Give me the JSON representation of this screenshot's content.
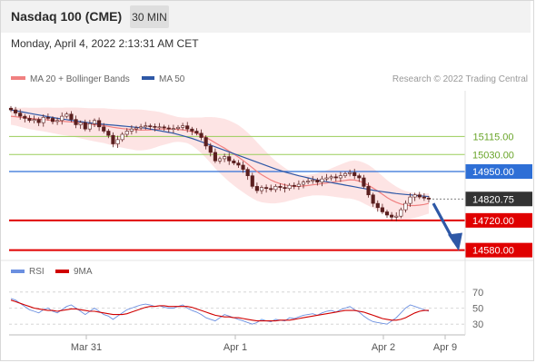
{
  "header": {
    "instrument": "Nasdaq 100 (CME)",
    "interval": "30 MIN",
    "datetime": "Monday, April 4, 2022 2:13:31 AM CET"
  },
  "legend": {
    "ma20_bb": "MA 20 + Bollinger Bands",
    "ma50": "MA 50",
    "copyright": "Research © 2022 Trading Central",
    "rsi": "RSI",
    "rsi_ma": "9MA"
  },
  "colors": {
    "ma20": "#f08080",
    "bollinger_fill": "#fde3e3",
    "ma50": "#2e58a6",
    "resistance": "#9acd5a",
    "pivot": "#2e6fd6",
    "support": "#e00000",
    "current": "#333333",
    "candle_up": "#ffffff",
    "candle_down": "#5a1f1f",
    "arrow": "#2e58a6",
    "rsi": "#6b8fe0",
    "rsi_ma": "#d00000"
  },
  "chart_data": [
    {
      "type": "candlestick",
      "title": "Nasdaq 100 (CME)",
      "ylim": [
        14540,
        15330
      ],
      "x_ticks": [
        "Mar 31",
        "Apr 1",
        "Apr 2",
        "Apr 9"
      ],
      "levels": [
        {
          "label": "15115.00",
          "value": 15115.0,
          "kind": "resistance"
        },
        {
          "label": "15030.00",
          "value": 15030.0,
          "kind": "resistance"
        },
        {
          "label": "14950.00",
          "value": 14950.0,
          "kind": "pivot"
        },
        {
          "label": "14820.75",
          "value": 14820.75,
          "kind": "current"
        },
        {
          "label": "14720.00",
          "value": 14720.0,
          "kind": "support"
        },
        {
          "label": "14580.00",
          "value": 14580.0,
          "kind": "support"
        }
      ],
      "close": [
        15240,
        15225,
        15210,
        15200,
        15190,
        15195,
        15180,
        15205,
        15200,
        15185,
        15190,
        15210,
        15220,
        15195,
        15170,
        15180,
        15150,
        15175,
        15190,
        15160,
        15140,
        15120,
        15080,
        15100,
        15125,
        15140,
        15150,
        15155,
        15160,
        15165,
        15162,
        15158,
        15160,
        15155,
        15150,
        15152,
        15158,
        15165,
        15150,
        15140,
        15130,
        15110,
        15070,
        15040,
        15000,
        15010,
        15020,
        15000,
        14990,
        14980,
        14960,
        14930,
        14880,
        14860,
        14875,
        14870,
        14865,
        14880,
        14875,
        14870,
        14885,
        14880,
        14890,
        14900,
        14905,
        14910,
        14900,
        14915,
        14920,
        14925,
        14920,
        14930,
        14940,
        14945,
        14930,
        14920,
        14880,
        14840,
        14800,
        14780,
        14760,
        14745,
        14735,
        14740,
        14770,
        14800,
        14830,
        14840,
        14830,
        14825,
        14820
      ],
      "ma20": [
        15210,
        15208,
        15205,
        15203,
        15200,
        15198,
        15196,
        15195,
        15193,
        15190,
        15188,
        15186,
        15185,
        15183,
        15181,
        15178,
        15175,
        15172,
        15170,
        15168,
        15166,
        15162,
        15158,
        15155,
        15152,
        15150,
        15148,
        15146,
        15145,
        15145,
        15146,
        15148,
        15150,
        15150,
        15150,
        15150,
        15148,
        15146,
        15143,
        15138,
        15130,
        15120,
        15110,
        15098,
        15085,
        15072,
        15060,
        15046,
        15032,
        15018,
        15002,
        14985,
        14968,
        14950,
        14935,
        14922,
        14910,
        14900,
        14893,
        14887,
        14883,
        14880,
        14880,
        14882,
        14884,
        14887,
        14890,
        14893,
        14896,
        14899,
        14902,
        14905,
        14908,
        14911,
        14910,
        14905,
        14896,
        14885,
        14872,
        14858,
        14843,
        14828,
        14815,
        14805,
        14797,
        14792,
        14790,
        14790,
        14792,
        14795,
        14800
      ],
      "ma50": [
        15240,
        15236,
        15232,
        15228,
        15224,
        15220,
        15216,
        15212,
        15208,
        15204,
        15200,
        15197,
        15194,
        15191,
        15188,
        15185,
        15182,
        15179,
        15176,
        15174,
        15172,
        15170,
        15168,
        15166,
        15164,
        15162,
        15160,
        15158,
        15156,
        15154,
        15150,
        15146,
        15142,
        15138,
        15134,
        15130,
        15124,
        15118,
        15112,
        15106,
        15098,
        15090,
        15082,
        15074,
        15066,
        15058,
        15050,
        15042,
        15034,
        15026,
        15018,
        15010,
        15002,
        14994,
        14986,
        14978,
        14970,
        14962,
        14955,
        14948,
        14942,
        14936,
        14930,
        14925,
        14920,
        14915,
        14910,
        14906,
        14902,
        14898,
        14894,
        14890,
        14886,
        14882,
        14878,
        14874,
        14870,
        14866,
        14862,
        14858,
        14855,
        14852,
        14849,
        14846,
        14844,
        14842,
        14840,
        14838,
        14836,
        14834,
        14832
      ],
      "bb_width": [
        40,
        42,
        45,
        48,
        50,
        52,
        54,
        56,
        58,
        60,
        62,
        64,
        66,
        68,
        70,
        72,
        74,
        76,
        78,
        80,
        82,
        84,
        86,
        88,
        90,
        92,
        94,
        96,
        96,
        94,
        90,
        86,
        80,
        74,
        68,
        62,
        58,
        58,
        60,
        66,
        74,
        84,
        96,
        108,
        120,
        130,
        138,
        144,
        148,
        150,
        150,
        148,
        144,
        138,
        130,
        120,
        110,
        100,
        90,
        80,
        70,
        62,
        56,
        52,
        50,
        50,
        52,
        56,
        60,
        66,
        72,
        78,
        84,
        88,
        92,
        94,
        96,
        96,
        94,
        90,
        86,
        82,
        78,
        74,
        70,
        66,
        62,
        58,
        54,
        50,
        48
      ]
    },
    {
      "type": "line",
      "ylim": [
        20,
        80
      ],
      "y_ticks": [
        70,
        50,
        30
      ],
      "series": [
        {
          "name": "RSI",
          "values": [
            62,
            60,
            56,
            52,
            48,
            46,
            44,
            48,
            50,
            46,
            44,
            48,
            52,
            54,
            50,
            46,
            42,
            46,
            50,
            46,
            42,
            40,
            36,
            40,
            44,
            48,
            50,
            52,
            54,
            55,
            54,
            52,
            53,
            51,
            50,
            50,
            52,
            54,
            50,
            47,
            45,
            42,
            38,
            36,
            34,
            38,
            42,
            40,
            38,
            36,
            34,
            32,
            30,
            32,
            36,
            34,
            33,
            36,
            35,
            34,
            38,
            37,
            39,
            41,
            42,
            43,
            41,
            44,
            46,
            47,
            45,
            48,
            50,
            52,
            48,
            45,
            40,
            36,
            33,
            32,
            31,
            30,
            34,
            38,
            44,
            50,
            54,
            52,
            50,
            48,
            46
          ]
        },
        {
          "name": "9MA",
          "values": [
            60,
            58,
            56,
            54,
            52,
            50,
            49,
            48,
            47,
            47,
            46,
            47,
            48,
            49,
            49,
            48,
            47,
            46,
            46,
            45,
            44,
            43,
            42,
            42,
            42,
            43,
            45,
            47,
            49,
            51,
            52,
            52,
            53,
            53,
            52,
            52,
            52,
            52,
            52,
            51,
            49,
            47,
            45,
            43,
            41,
            40,
            39,
            39,
            38,
            38,
            37,
            36,
            35,
            34,
            34,
            34,
            34,
            34,
            35,
            35,
            35,
            36,
            37,
            38,
            39,
            40,
            41,
            42,
            43,
            44,
            45,
            46,
            47,
            47,
            47,
            46,
            45,
            43,
            41,
            39,
            37,
            36,
            35,
            35,
            36,
            38,
            41,
            44,
            46,
            47,
            47
          ]
        }
      ]
    }
  ]
}
